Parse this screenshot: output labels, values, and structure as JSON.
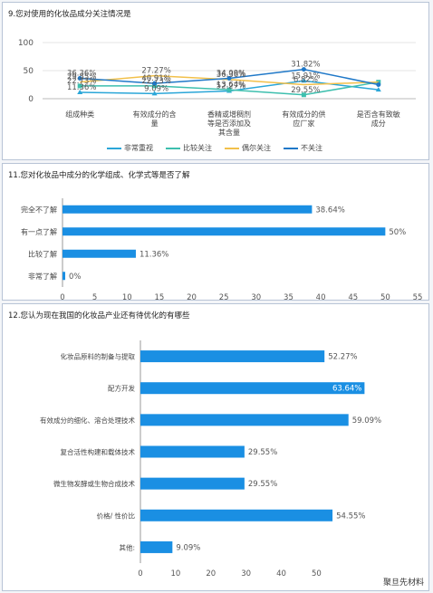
{
  "watermark": "聚旦先材料",
  "chart_data": [
    {
      "type": "line",
      "title": "9.您对使用的化妆品成分关注情况是",
      "categories": [
        "组成种类",
        "有效成分的含量",
        "香精或增稠剂等是否添加及其含量",
        "有效成分的供应厂家",
        "是否含有致敏成分"
      ],
      "ylim": [
        0,
        100
      ],
      "yticks": [
        0,
        50,
        100
      ],
      "series": [
        {
          "name": "非常重视",
          "color": "#2aa6d8",
          "values": [
            11.36,
            9.09,
            13.64,
            31.82,
            15.91
          ]
        },
        {
          "name": "比较关注",
          "color": "#3dbfae",
          "values": [
            22.73,
            22.73,
            15.91,
            6.82,
            29.55
          ]
        },
        {
          "name": "偶尔关注",
          "color": "#f2c04a",
          "values": [
            29.55,
            40.91,
            34.09,
            25.0,
            29.55
          ]
        },
        {
          "name": "不关注",
          "color": "#1f78c8",
          "values": [
            36.36,
            27.27,
            36.36,
            52.27,
            25.0
          ]
        }
      ],
      "labels": [
        "36.36%",
        "29.55%",
        "22.73%",
        "11.36%",
        "40.91%",
        "27.27%",
        "22.73%",
        "9.09%",
        "34.09%",
        "36.36%",
        "13.64%",
        "52.27%",
        "31.82%",
        "6.82%",
        "29.55%",
        "15.91%"
      ],
      "legend": "bottom"
    },
    {
      "type": "bar",
      "orientation": "horizontal",
      "title": "11.您对化妆品中成分的化学组成、化学式等是否了解",
      "categories": [
        "完全不了解",
        "有一点了解",
        "比较了解",
        "非常了解"
      ],
      "values": [
        38.64,
        50,
        11.36,
        0
      ],
      "value_labels": [
        "38.64%",
        "50%",
        "11.36%",
        "0%"
      ],
      "xlim": [
        0,
        55
      ],
      "xticks": [
        0,
        5,
        10,
        15,
        20,
        25,
        30,
        35,
        40,
        45,
        50,
        55
      ],
      "color": "#1a8fe3"
    },
    {
      "type": "bar",
      "orientation": "horizontal",
      "title": "12.您认为现在我国的化妆品产业还有待优化的有哪些",
      "categories": [
        "化妆品原料的制备与提取",
        "配方开发",
        "有效成分的细化、溶合处理技术",
        "复合活性构建和载体技术",
        "微生物发酵或生物合成技术",
        "价格/ 性价比",
        "其他:"
      ],
      "values": [
        52.27,
        63.64,
        59.09,
        29.55,
        29.55,
        54.55,
        9.09
      ],
      "value_labels": [
        "52.27%",
        "63.64%",
        "59.09%",
        "29.55%",
        "29.55%",
        "54.55%",
        "9.09%"
      ],
      "xlim": [
        0,
        80
      ],
      "xticks": [
        0,
        10,
        20,
        30,
        40,
        50
      ],
      "color": "#1a8fe3"
    }
  ]
}
